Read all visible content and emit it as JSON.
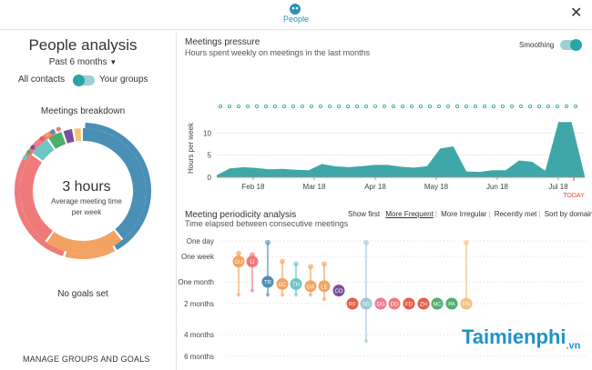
{
  "header": {
    "app_label": "People"
  },
  "left": {
    "title": "People analysis",
    "period": "Past 6 months",
    "all_contacts": "All contacts",
    "your_groups": "Your groups",
    "breakdown_title": "Meetings breakdown",
    "donut_value": "3 hours",
    "donut_caption_1": "Average meeting time",
    "donut_caption_2": "per week",
    "no_goals": "No goals set",
    "manage": "MANAGE GROUPS AND GOALS"
  },
  "pressure": {
    "title": "Meetings pressure",
    "subtitle": "Hours spent weekly on meetings in the last months",
    "smoothing": "Smoothing",
    "today": "TODAY"
  },
  "periodicity": {
    "title": "Meeting periodicity analysis",
    "subtitle": "Time elapsed between consecutive meetings",
    "show_first": "Show first",
    "filters": [
      "More Frequent",
      "More Irregular",
      "Recently met",
      "Sort by domain"
    ]
  },
  "watermark": {
    "brand": "Taimienphi",
    "suffix": ".vn"
  },
  "colors": {
    "teal": "#2a9d9d",
    "blue": "#4a8fb5",
    "orange": "#f4a261",
    "coral": "#f07a7a",
    "today_red": "#e0443a"
  },
  "chart_data": [
    {
      "type": "area",
      "title": "Meetings pressure",
      "ylabel": "Hours per week",
      "ylim": [
        0,
        14
      ],
      "yticks": [
        0,
        5,
        10
      ],
      "xticks": [
        "Feb 18",
        "Mar 18",
        "Apr 18",
        "May 18",
        "Jun 18",
        "Jul 18"
      ],
      "x": [
        0,
        1,
        2,
        3,
        4,
        5,
        6,
        7,
        8,
        9,
        10,
        11,
        12,
        13,
        14,
        15,
        16,
        17,
        18,
        19,
        20,
        21,
        22,
        23,
        24,
        25,
        26,
        27,
        28
      ],
      "values": [
        0.5,
        2,
        2.3,
        2.1,
        1.8,
        1.9,
        1.7,
        1.6,
        3,
        2.5,
        2.3,
        2.5,
        2.8,
        2.8,
        2.4,
        2.2,
        2.5,
        6.5,
        7,
        1.3,
        1.2,
        1.6,
        1.6,
        3.8,
        3.5,
        1.5,
        12.5,
        12.5,
        0.3
      ],
      "today_label": "TODAY"
    },
    {
      "type": "scatter",
      "title": "Meeting periodicity analysis",
      "ylabel": "Time elapsed between consecutive meetings",
      "y_ticks": [
        "One day",
        "One week",
        "One month",
        "2 months",
        "4 months",
        "6 months"
      ],
      "points": [
        {
          "label": "GU",
          "color": "#f4a261",
          "pos": 1.2,
          "low": 0.8,
          "high": 2.6
        },
        {
          "label": "LI",
          "color": "#f07a7a",
          "pos": 1.2,
          "low": 0.9,
          "high": 2.4
        },
        {
          "label": "TR",
          "color": "#4a8fb5",
          "pos": 2.0,
          "low": 0.1,
          "high": 2.6
        },
        {
          "label": "GC",
          "color": "#f4a261",
          "pos": 2.1,
          "low": 1.2,
          "high": 2.6
        },
        {
          "label": "TH",
          "color": "#6cc6c6",
          "pos": 2.1,
          "low": 1.3,
          "high": 2.6
        },
        {
          "label": "GR",
          "color": "#f4a261",
          "pos": 2.2,
          "low": 1.4,
          "high": 2.6
        },
        {
          "label": "LE",
          "color": "#f4a261",
          "pos": 2.2,
          "low": 1.3,
          "high": 2.8
        },
        {
          "label": "CO",
          "color": "#7a4fa0",
          "pos": 2.4,
          "low": 2.4,
          "high": 2.4
        },
        {
          "label": "RF",
          "color": "#e85d4a",
          "pos": 3.0,
          "low": 3.0,
          "high": 3.0
        },
        {
          "label": "SD",
          "color": "#9fc7d6",
          "pos": 3.0,
          "low": 0.1,
          "high": 4.3
        },
        {
          "label": "DG",
          "color": "#f07a9a",
          "pos": 3.0,
          "low": 3.0,
          "high": 3.0
        },
        {
          "label": "DD",
          "color": "#f07a7a",
          "pos": 3.0,
          "low": 3.0,
          "high": 3.0
        },
        {
          "label": "FD",
          "color": "#e85d4a",
          "pos": 3.0,
          "low": 3.0,
          "high": 3.0
        },
        {
          "label": "ZH",
          "color": "#e85d4a",
          "pos": 3.0,
          "low": 3.0,
          "high": 3.0
        },
        {
          "label": "MC",
          "color": "#4caf6a",
          "pos": 3.0,
          "low": 3.0,
          "high": 3.0
        },
        {
          "label": "PA",
          "color": "#4caf6a",
          "pos": 3.0,
          "low": 3.0,
          "high": 3.0
        },
        {
          "label": "FN",
          "color": "#f4c27a",
          "pos": 3.0,
          "low": 0.1,
          "high": 3.0
        }
      ]
    },
    {
      "type": "pie",
      "title": "Meetings breakdown",
      "center_label": "3 hours",
      "center_caption": "Average meeting time per week"
    }
  ]
}
